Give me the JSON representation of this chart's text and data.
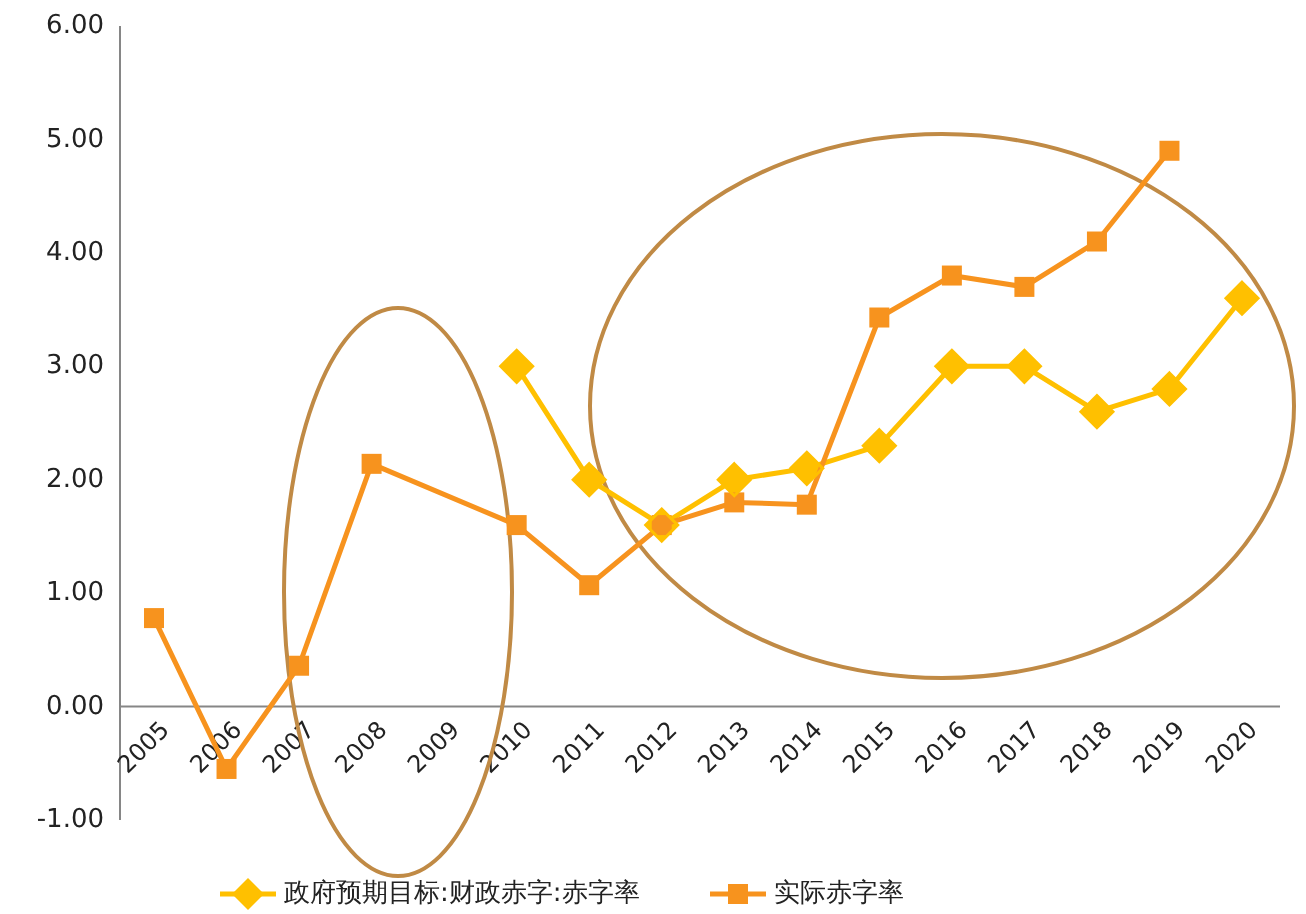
{
  "chart_data": {
    "type": "line",
    "categories": [
      "2005",
      "2006",
      "2007",
      "2008",
      "2009",
      "2010",
      "2011",
      "2012",
      "2013",
      "2014",
      "2015",
      "2016",
      "2017",
      "2018",
      "2019",
      "2020"
    ],
    "series": [
      {
        "name": "政府预期目标:财政赤字:赤字率",
        "color": "#ffc000",
        "marker": "diamond",
        "values": [
          null,
          null,
          null,
          null,
          null,
          3.0,
          2.0,
          1.6,
          2.0,
          2.1,
          2.3,
          3.0,
          3.0,
          2.6,
          2.8,
          3.6
        ]
      },
      {
        "name": "实际赤字率",
        "color": "#f7931e",
        "marker": "square",
        "values": [
          0.78,
          -0.55,
          0.36,
          2.14,
          null,
          1.6,
          1.07,
          1.6,
          1.8,
          1.78,
          3.43,
          3.8,
          3.7,
          4.1,
          4.9,
          null
        ]
      }
    ],
    "ylim": [
      -1,
      6
    ],
    "yticks": [
      {
        "value": -1,
        "label": "-1.00"
      },
      {
        "value": 0,
        "label": "0.00"
      },
      {
        "value": 1,
        "label": "1.00"
      },
      {
        "value": 2,
        "label": "2.00"
      },
      {
        "value": 3,
        "label": "3.00"
      },
      {
        "value": 4,
        "label": "4.00"
      },
      {
        "value": 5,
        "label": "5.00"
      },
      {
        "value": 6,
        "label": "6.00"
      }
    ],
    "grid": false,
    "legend": "bottom"
  }
}
